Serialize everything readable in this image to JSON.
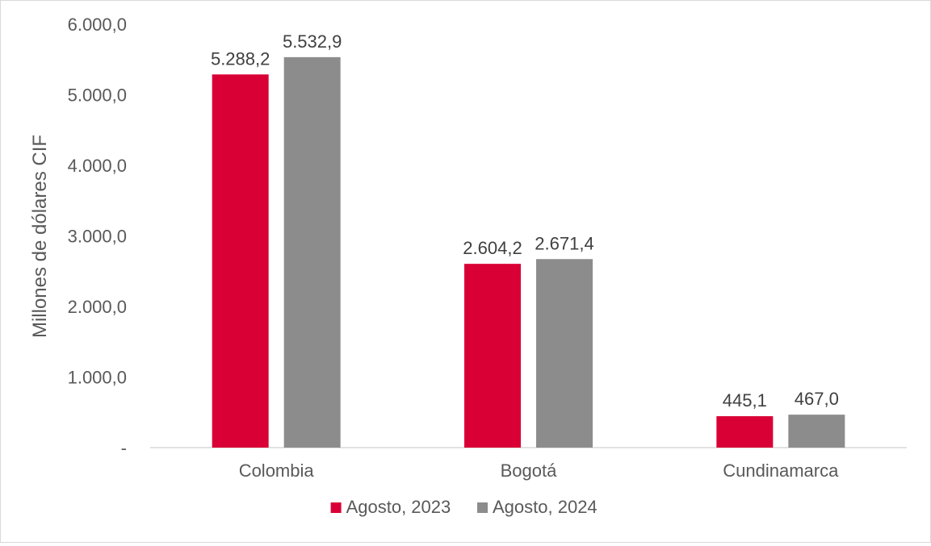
{
  "chart_data": {
    "type": "bar",
    "title": "",
    "xlabel": "",
    "ylabel": "Millones de dólares CIF",
    "ylim": [
      0,
      6000
    ],
    "yticks": [
      0,
      1000,
      2000,
      3000,
      4000,
      5000,
      6000
    ],
    "ytick_labels": [
      "-",
      "1.000,0",
      "2.000,0",
      "3.000,0",
      "4.000,0",
      "5.000,0",
      "6.000,0"
    ],
    "categories": [
      "Colombia",
      "Bogotá",
      "Cundinamarca"
    ],
    "series": [
      {
        "name": "Agosto, 2023",
        "color": "#d90036",
        "values": [
          5288.2,
          2604.2,
          445.1
        ],
        "labels": [
          "5.288,2",
          "2.604,2",
          "445,1"
        ]
      },
      {
        "name": "Agosto, 2024",
        "color": "#8c8c8c",
        "values": [
          5532.9,
          2671.4,
          467.0
        ],
        "labels": [
          "5.532,9",
          "2.671,4",
          "467,0"
        ]
      }
    ],
    "grid": false,
    "legend_position": "bottom"
  }
}
